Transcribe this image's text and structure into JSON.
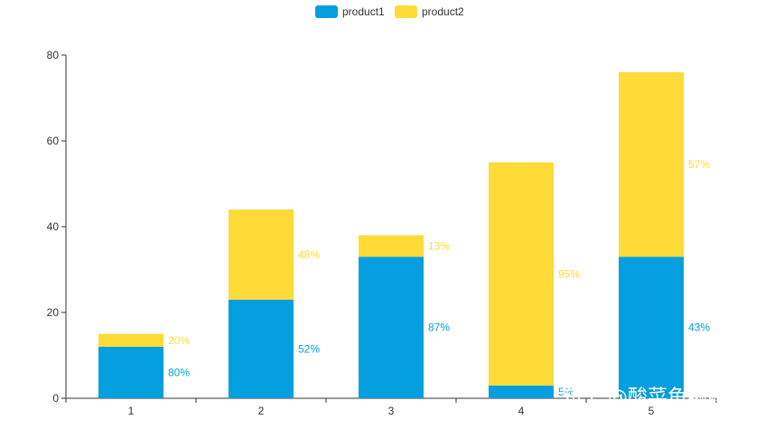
{
  "chart_data": {
    "type": "bar",
    "stacked": true,
    "categories": [
      "1",
      "2",
      "3",
      "4",
      "5"
    ],
    "series": [
      {
        "name": "product1",
        "color": "#049fdf",
        "values": [
          12,
          23,
          33,
          3,
          33
        ],
        "labels": [
          "80%",
          "52%",
          "87%",
          "5%",
          "43%"
        ]
      },
      {
        "name": "product2",
        "color": "#fedb36",
        "values": [
          3,
          21,
          5,
          52,
          43
        ],
        "labels": [
          "20%",
          "48%",
          "13%",
          "95%",
          "57%"
        ]
      }
    ],
    "ylim": [
      0,
      80
    ],
    "yticks": [
      0,
      20,
      40,
      60,
      80
    ],
    "legend_position": "top-center",
    "grid": false
  },
  "watermark": "知乎 @酸菜鱼编程"
}
